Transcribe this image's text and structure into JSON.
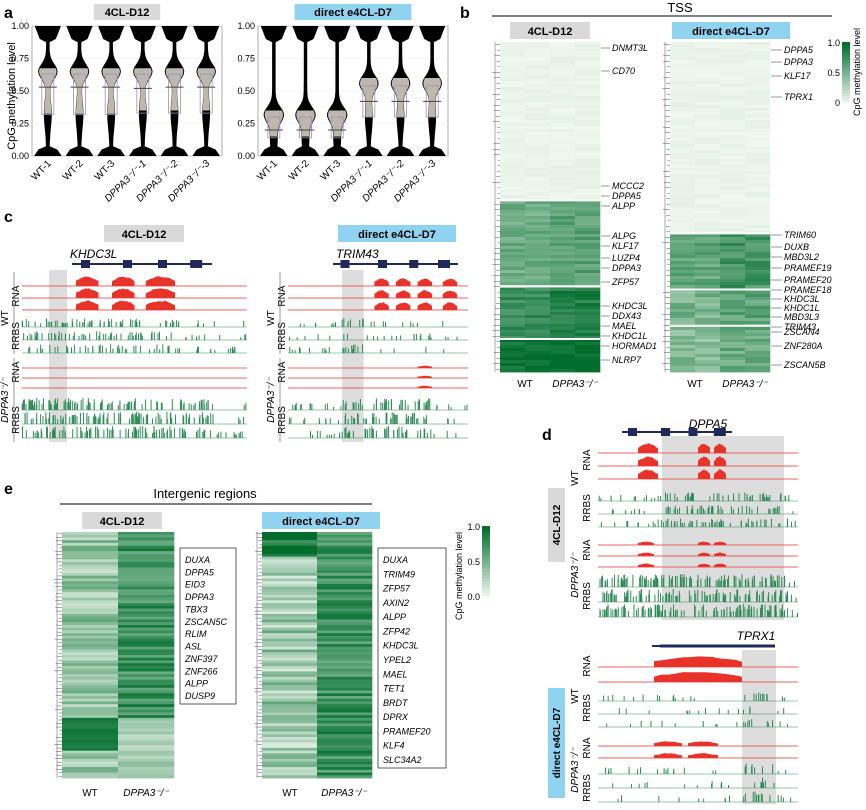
{
  "colors": {
    "tag_gray": "#d9d9d9",
    "tag_cyan": "#8fd3f0",
    "violin": "#000000",
    "violin_fill": "#bdb8ab",
    "rna": "#e8332b",
    "rrbs": "#2e8b57",
    "highlight": "#cfcfcf",
    "heat_low": "#f4faf2",
    "heat_high": "#006d2c"
  },
  "panel_labels": {
    "a": "a",
    "b": "b",
    "c": "c",
    "d": "d",
    "e": "e"
  },
  "chart_data": [
    {
      "id": "a1",
      "type": "violin",
      "title": "4CL-D12",
      "ylabel": "CpG methylation level",
      "ylim": [
        0,
        1.0
      ],
      "yticks": [
        "0.00",
        "0.25",
        "0.50",
        "0.75",
        "1.00"
      ],
      "categories": [
        "WT-1",
        "WT-2",
        "WT-3",
        "DPPA3-/-1",
        "DPPA3-/-2",
        "DPPA3-/-3"
      ],
      "category_labels": [
        "WT-1",
        "WT-2",
        "WT-3",
        "DPPA3⁻/⁻-1",
        "DPPA3⁻/⁻-2",
        "DPPA3⁻/⁻-3"
      ],
      "medians": [
        0.53,
        0.53,
        0.53,
        0.52,
        0.53,
        0.53
      ],
      "q1": [
        0.32,
        0.32,
        0.32,
        0.33,
        0.33,
        0.33
      ],
      "q3": [
        0.63,
        0.63,
        0.63,
        0.63,
        0.63,
        0.63
      ]
    },
    {
      "id": "a2",
      "type": "violin",
      "title": "direct e4CL-D7",
      "ylim": [
        0,
        1.0
      ],
      "yticks": [
        "0.00",
        "0.25",
        "0.50",
        "0.75",
        "1.00"
      ],
      "categories": [
        "WT-1",
        "WT-2",
        "WT-3",
        "DPPA3-/-1",
        "DPPA3-/-2",
        "DPPA3-/-3"
      ],
      "category_labels": [
        "WT-1",
        "WT-2",
        "WT-3",
        "DPPA3⁻/⁻-1",
        "DPPA3⁻/⁻-2",
        "DPPA3⁻/⁻-3"
      ],
      "medians": [
        0.2,
        0.2,
        0.2,
        0.42,
        0.42,
        0.42
      ],
      "q1": [
        0.14,
        0.14,
        0.14,
        0.3,
        0.3,
        0.3
      ],
      "q3": [
        0.3,
        0.3,
        0.3,
        0.54,
        0.54,
        0.54
      ]
    },
    {
      "id": "b",
      "type": "heatmap",
      "title": "TSS",
      "subtitles": [
        "4CL-D12",
        "direct e4CL-D7"
      ],
      "columns": [
        "WT",
        "DPPA3⁻/⁻"
      ],
      "colorbar": {
        "label": "CpG methylation level",
        "ticks": [
          "1.0",
          "0.5",
          "0"
        ]
      },
      "genes_left": [
        "DNMT3L",
        "CD70",
        "MCCC2",
        "DPPA5",
        "ALPP",
        "ALPG",
        "KLF17",
        "LUZP4",
        "DPPA3",
        "ZFP57",
        "KHDC3L",
        "DDX43",
        "MAEL",
        "KHDC1L",
        "HORMAD1",
        "NLRP7"
      ],
      "genes_right": [
        "DPPA5",
        "DPPA3",
        "KLF17",
        "TPRX1",
        "TRIM60",
        "DUXB",
        "MBD3L2",
        "PRAMEF19",
        "PRAMEF20",
        "PRAMEF18",
        "KHDC3L",
        "KHDC1L",
        "MBD3L3",
        "TRIM43",
        "ZSCAN4",
        "ZNF280A",
        "ZSCAN5B"
      ]
    },
    {
      "id": "c",
      "type": "genome-track",
      "titles": [
        "4CL-D12",
        "direct e4CL-D7"
      ],
      "genes": [
        "KHDC3L",
        "TRIM43"
      ],
      "groups": [
        "WT",
        "DPPA3⁻/⁻"
      ],
      "tracks": [
        "RNA",
        "RRBS"
      ]
    },
    {
      "id": "d",
      "type": "genome-track",
      "titles": [
        "4CL-D12",
        "direct e4CL-D7"
      ],
      "genes": [
        "DPPA5",
        "TPRX1"
      ],
      "groups": [
        "WT",
        "DPPA3⁻/⁻"
      ],
      "tracks": [
        "RNA",
        "RRBS"
      ]
    },
    {
      "id": "e",
      "type": "heatmap",
      "title": "Intergenic regions",
      "subtitles": [
        "4CL-D12",
        "direct e4CL-D7"
      ],
      "columns": [
        "WT",
        "DPPA3⁻/⁻"
      ],
      "colorbar": {
        "label": "CpG methylation level",
        "ticks": [
          "1.0",
          "0.5",
          "0.0"
        ]
      },
      "genes_left": [
        "DUXA",
        "DPPA5",
        "EID3",
        "DPPA3",
        "TBX3",
        "ZSCAN5C",
        "RLIM",
        "ASL",
        "ZNF397",
        "ZNF266",
        "ALPP",
        "DUSP9"
      ],
      "genes_right": [
        "DUXA",
        "TRIM49",
        "ZFP57",
        "AXIN2",
        "ALPP",
        "ZFP42",
        "KHDC3L",
        "YPEL2",
        "MAEL",
        "TET1",
        "BRDT",
        "DPRX",
        "PRAMEF20",
        "KLF4",
        "SLC34A2"
      ]
    }
  ]
}
